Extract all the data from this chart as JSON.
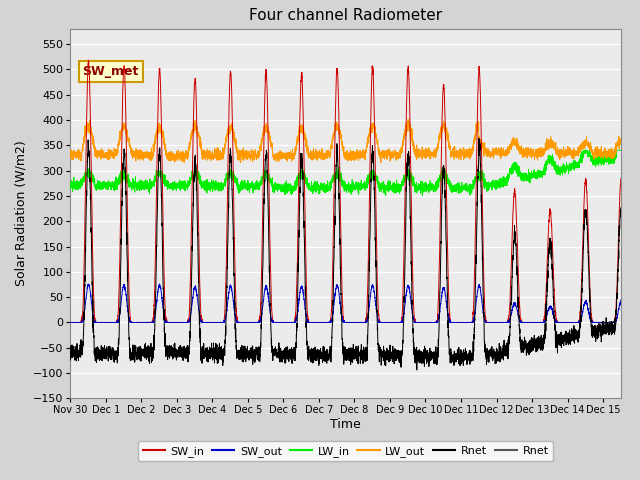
{
  "title": "Four channel Radiometer",
  "xlabel": "Time",
  "ylabel": "Solar Radiation (W/m2)",
  "ylim": [
    -150,
    580
  ],
  "yticks": [
    -150,
    -100,
    -50,
    0,
    50,
    100,
    150,
    200,
    250,
    300,
    350,
    400,
    450,
    500,
    550
  ],
  "fig_facecolor": "#d4d4d4",
  "ax_facecolor": "#ebebeb",
  "annotation_text": "SW_met",
  "annotation_facecolor": "#ffffcc",
  "annotation_edgecolor": "#cc9900",
  "annotation_textcolor": "#8b0000",
  "x_ticks": [
    0,
    1,
    2,
    3,
    4,
    5,
    6,
    7,
    8,
    9,
    10,
    11,
    12,
    13,
    14,
    15
  ],
  "x_labels": [
    "Nov 30",
    "Dec 1",
    "Dec 2",
    "Dec 3",
    "Dec 4",
    "Dec 5",
    "Dec 6",
    "Dec 7",
    "Dec 8",
    "Dec 9",
    "Dec 10",
    "Dec 11",
    "Dec 12",
    "Dec 13",
    "Dec 14",
    "Dec 15"
  ],
  "legend_labels": [
    "SW_in",
    "SW_out",
    "LW_in",
    "LW_out",
    "Rnet",
    "Rnet"
  ],
  "legend_colors": [
    "#cc0000",
    "#0000cc",
    "#00ee00",
    "#ff9900",
    "#000000",
    "#555555"
  ],
  "SW_in_peaks": [
    515,
    508,
    500,
    481,
    494,
    495,
    490,
    502,
    505,
    502,
    470,
    500,
    260,
    220,
    280
  ],
  "SW_out_night": -5,
  "LW_in_base": 268,
  "LW_out_base": 332,
  "Rnet_night": -80,
  "grid_color": "#ffffff",
  "line_lw": 0.7,
  "n_points": 4320
}
